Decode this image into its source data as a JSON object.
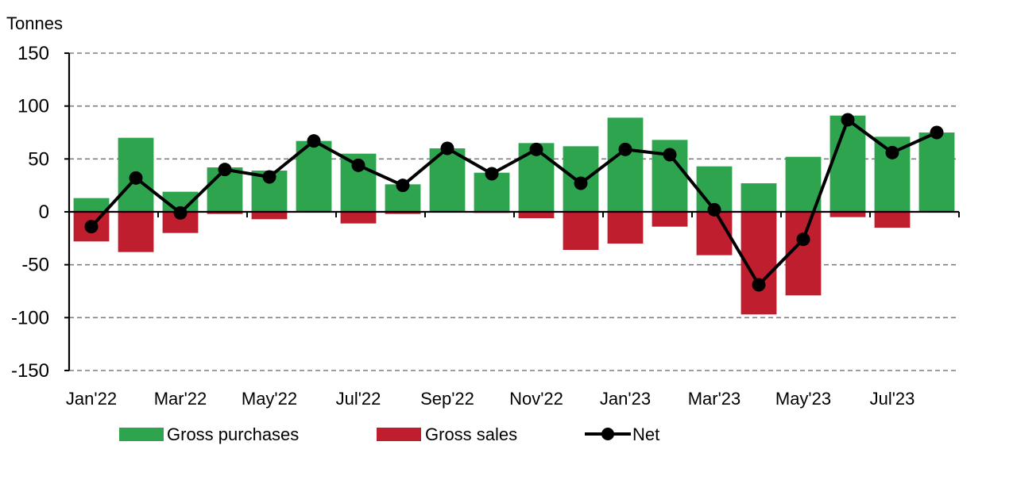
{
  "chart_data": {
    "type": "bar",
    "title": "",
    "ylabel": "Tonnes",
    "xlabel": "",
    "ylim": [
      -150,
      150
    ],
    "yticks": [
      150,
      100,
      50,
      0,
      -50,
      -100,
      -150
    ],
    "grid": true,
    "categories": [
      "Jan'22",
      "Feb'22",
      "Mar'22",
      "Apr'22",
      "May'22",
      "Jun'22",
      "Jul'22",
      "Aug'22",
      "Sep'22",
      "Oct'22",
      "Nov'22",
      "Dec'22",
      "Jan'23",
      "Feb'23",
      "Mar'23",
      "Apr'23",
      "May'23",
      "Jun'23",
      "Jul'23",
      "Aug'23"
    ],
    "tick_labels": [
      "Jan'22",
      "Mar'22",
      "May'22",
      "Jul'22",
      "Sep'22",
      "Nov'22",
      "Jan'23",
      "Mar'23",
      "May'23",
      "Jul'23"
    ],
    "series": [
      {
        "name": "Gross purchases",
        "kind": "bar",
        "color": "#2ea44f",
        "values": [
          13,
          70,
          19,
          42,
          39,
          67,
          55,
          26,
          60,
          37,
          65,
          62,
          89,
          68,
          43,
          27,
          52,
          91,
          71,
          75
        ]
      },
      {
        "name": "Gross sales",
        "kind": "bar",
        "color": "#be1e2d",
        "values": [
          -28,
          -38,
          -20,
          -2,
          -7,
          0,
          -11,
          -2,
          0,
          -1,
          -6,
          -36,
          -30,
          -14,
          -41,
          -97,
          -79,
          -5,
          -15,
          0
        ]
      },
      {
        "name": "Net",
        "kind": "line",
        "color": "#000000",
        "values": [
          -14,
          32,
          -1,
          40,
          33,
          67,
          44,
          25,
          60,
          36,
          59,
          27,
          59,
          54,
          2,
          -69,
          -26,
          87,
          56,
          75
        ]
      }
    ],
    "legend_position": "bottom"
  }
}
